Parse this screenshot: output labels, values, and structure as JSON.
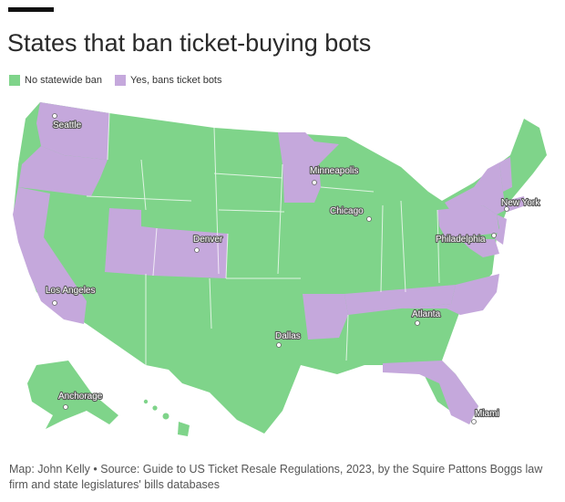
{
  "title": "States that ban ticket-buying bots",
  "legend": [
    {
      "label": "No statewide ban",
      "color": "#7fd48a"
    },
    {
      "label": "Yes, bans ticket bots",
      "color": "#c5a8dc"
    }
  ],
  "colors": {
    "no_ban": "#7fd48a",
    "ban": "#c5a8dc"
  },
  "cities": [
    "Seattle",
    "Minneapolis",
    "Chicago",
    "New York",
    "Denver",
    "Philadelphia",
    "Los Angeles",
    "Atlanta",
    "Dallas",
    "Anchorage",
    "Miami"
  ],
  "caption": "Map: John Kelly • Source: Guide to US Ticket Resale Regulations, 2023, by the Squire Pattons Boggs law firm and state legislatures' bills databases"
}
